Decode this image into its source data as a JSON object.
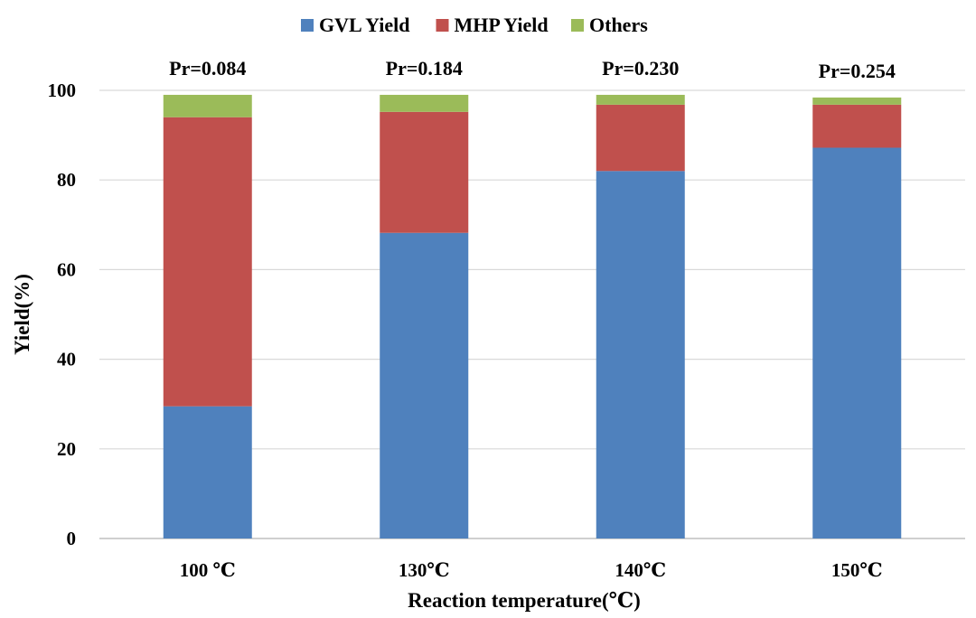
{
  "chart_data": {
    "type": "bar",
    "stacked": true,
    "categories": [
      "100 ℃",
      "130℃",
      "140℃",
      "150℃"
    ],
    "series": [
      {
        "name": "GVL Yield",
        "color": "#4F81BD",
        "values": [
          29.5,
          68.2,
          82.0,
          87.2
        ]
      },
      {
        "name": "MHP Yield",
        "color": "#C0504D",
        "values": [
          64.5,
          27.0,
          14.8,
          9.6
        ]
      },
      {
        "name": "Others",
        "color": "#9BBB59",
        "values": [
          5.0,
          3.8,
          2.2,
          1.6
        ]
      }
    ],
    "annotations": [
      "Pr=0.084",
      "Pr=0.184",
      "Pr=0.230",
      "Pr=0.254"
    ],
    "xlabel": "Reaction temperature(℃)",
    "ylabel": "Yield(%)",
    "ylim": [
      0,
      100
    ],
    "yticks": [
      0,
      20,
      40,
      60,
      80,
      100
    ],
    "grid": true,
    "legend_position": "top"
  }
}
